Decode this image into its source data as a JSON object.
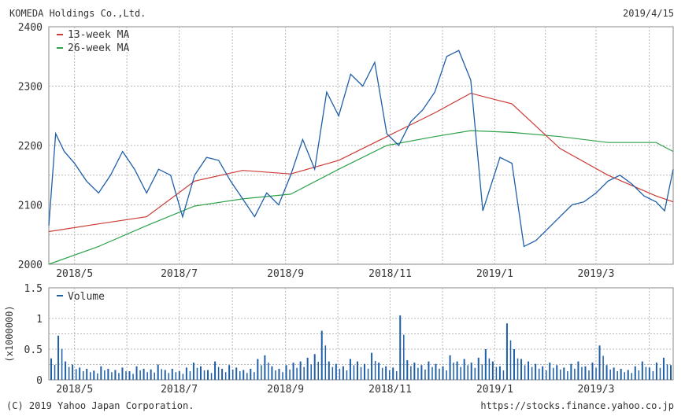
{
  "header": {
    "company": "KOMEDA Holdings Co.,Ltd.",
    "date": "2019/4/15"
  },
  "footer": {
    "copyright": "(C) 2019 Yahoo Japan Corporation.",
    "url": "https://stocks.finance.yahoo.co.jp"
  },
  "colors": {
    "price": "#1f5fa8",
    "ma13": "#cc3a34",
    "ma26": "#2fa24a",
    "volume": "#1f5fa8",
    "grid": "#b8b8b8",
    "frame": "#888888"
  },
  "chart_data": [
    {
      "type": "line",
      "title": "",
      "x_range": [
        "2018-04-16",
        "2019-04-15"
      ],
      "x_ticks": [
        "2018/5",
        "2018/7",
        "2018/9",
        "2018/11",
        "2019/1",
        "2019/3"
      ],
      "ylim": [
        2000,
        2400
      ],
      "y_ticks": [
        2000,
        2100,
        2200,
        2300,
        2400
      ],
      "grid": true,
      "legend_position": "top-left",
      "series": [
        {
          "name": "price",
          "x": [
            "2018-04-16",
            "2018-04-20",
            "2018-04-25",
            "2018-05-01",
            "2018-05-08",
            "2018-05-15",
            "2018-05-22",
            "2018-05-29",
            "2018-06-05",
            "2018-06-12",
            "2018-06-19",
            "2018-06-26",
            "2018-07-03",
            "2018-07-10",
            "2018-07-17",
            "2018-07-24",
            "2018-07-31",
            "2018-08-07",
            "2018-08-14",
            "2018-08-21",
            "2018-08-28",
            "2018-09-04",
            "2018-09-11",
            "2018-09-18",
            "2018-09-25",
            "2018-10-02",
            "2018-10-09",
            "2018-10-16",
            "2018-10-23",
            "2018-10-30",
            "2018-11-06",
            "2018-11-13",
            "2018-11-20",
            "2018-11-27",
            "2018-12-04",
            "2018-12-11",
            "2018-12-18",
            "2018-12-25",
            "2019-01-04",
            "2019-01-11",
            "2019-01-18",
            "2019-01-25",
            "2019-02-01",
            "2019-02-08",
            "2019-02-15",
            "2019-02-22",
            "2019-03-01",
            "2019-03-08",
            "2019-03-15",
            "2019-03-22",
            "2019-03-29",
            "2019-04-05",
            "2019-04-10",
            "2019-04-15"
          ],
          "values": [
            2065,
            2220,
            2190,
            2170,
            2140,
            2120,
            2150,
            2190,
            2160,
            2120,
            2160,
            2150,
            2080,
            2150,
            2180,
            2175,
            2140,
            2110,
            2080,
            2120,
            2100,
            2150,
            2210,
            2160,
            2290,
            2250,
            2320,
            2300,
            2340,
            2220,
            2200,
            2240,
            2260,
            2290,
            2350,
            2360,
            2310,
            2090,
            2180,
            2170,
            2030,
            2040,
            2060,
            2080,
            2100,
            2105,
            2120,
            2140,
            2150,
            2135,
            2115,
            2105,
            2090,
            2160
          ]
        },
        {
          "name": "13-week MA",
          "x": [
            "2018-04-16",
            "2018-05-15",
            "2018-06-12",
            "2018-07-10",
            "2018-08-07",
            "2018-09-04",
            "2018-10-02",
            "2018-10-30",
            "2018-11-27",
            "2018-12-18",
            "2019-01-11",
            "2019-02-08",
            "2019-03-08",
            "2019-04-05",
            "2019-04-15"
          ],
          "values": [
            2055,
            2068,
            2080,
            2140,
            2158,
            2152,
            2175,
            2215,
            2255,
            2288,
            2270,
            2195,
            2150,
            2115,
            2105
          ]
        },
        {
          "name": "26-week MA",
          "x": [
            "2018-04-16",
            "2018-05-15",
            "2018-06-12",
            "2018-07-10",
            "2018-08-07",
            "2018-09-04",
            "2018-10-02",
            "2018-10-30",
            "2018-11-27",
            "2018-12-18",
            "2019-01-11",
            "2019-02-08",
            "2019-03-08",
            "2019-04-05",
            "2019-04-15"
          ],
          "values": [
            2000,
            2030,
            2065,
            2098,
            2110,
            2118,
            2160,
            2200,
            2215,
            2225,
            2222,
            2215,
            2205,
            2205,
            2190
          ]
        }
      ]
    },
    {
      "type": "bar",
      "title": "",
      "x_range": [
        "2018-04-16",
        "2019-04-15"
      ],
      "x_ticks": [
        "2018/5",
        "2018/7",
        "2018/9",
        "2018/11",
        "2019/1",
        "2019/3"
      ],
      "ylabel": "(x1000000)",
      "ylim": [
        0,
        1.5
      ],
      "y_ticks": [
        "0",
        "0.5",
        "1",
        "1.5"
      ],
      "grid": true,
      "legend_position": "top-left",
      "series": [
        {
          "name": "Volume",
          "sample_every_n_trading_days": 3,
          "start": "2018-04-16",
          "values": [
            0.35,
            0.72,
            0.3,
            0.25,
            0.2,
            0.18,
            0.15,
            0.22,
            0.18,
            0.16,
            0.2,
            0.14,
            0.22,
            0.18,
            0.17,
            0.25,
            0.16,
            0.18,
            0.14,
            0.2,
            0.28,
            0.22,
            0.16,
            0.3,
            0.18,
            0.24,
            0.2,
            0.16,
            0.18,
            0.34,
            0.4,
            0.22,
            0.18,
            0.24,
            0.28,
            0.3,
            0.36,
            0.42,
            0.8,
            0.3,
            0.26,
            0.22,
            0.34,
            0.3,
            0.26,
            0.44,
            0.28,
            0.22,
            0.2,
            1.05,
            0.32,
            0.28,
            0.24,
            0.3,
            0.26,
            0.22,
            0.4,
            0.3,
            0.34,
            0.28,
            0.36,
            0.5,
            0.3,
            0.22,
            0.92,
            0.5,
            0.34,
            0.3,
            0.26,
            0.22,
            0.28,
            0.24,
            0.2,
            0.26,
            0.3,
            0.22,
            0.28,
            0.56,
            0.24,
            0.2,
            0.18,
            0.16,
            0.22,
            0.3,
            0.2,
            0.28,
            0.36,
            0.24
          ]
        }
      ]
    }
  ]
}
